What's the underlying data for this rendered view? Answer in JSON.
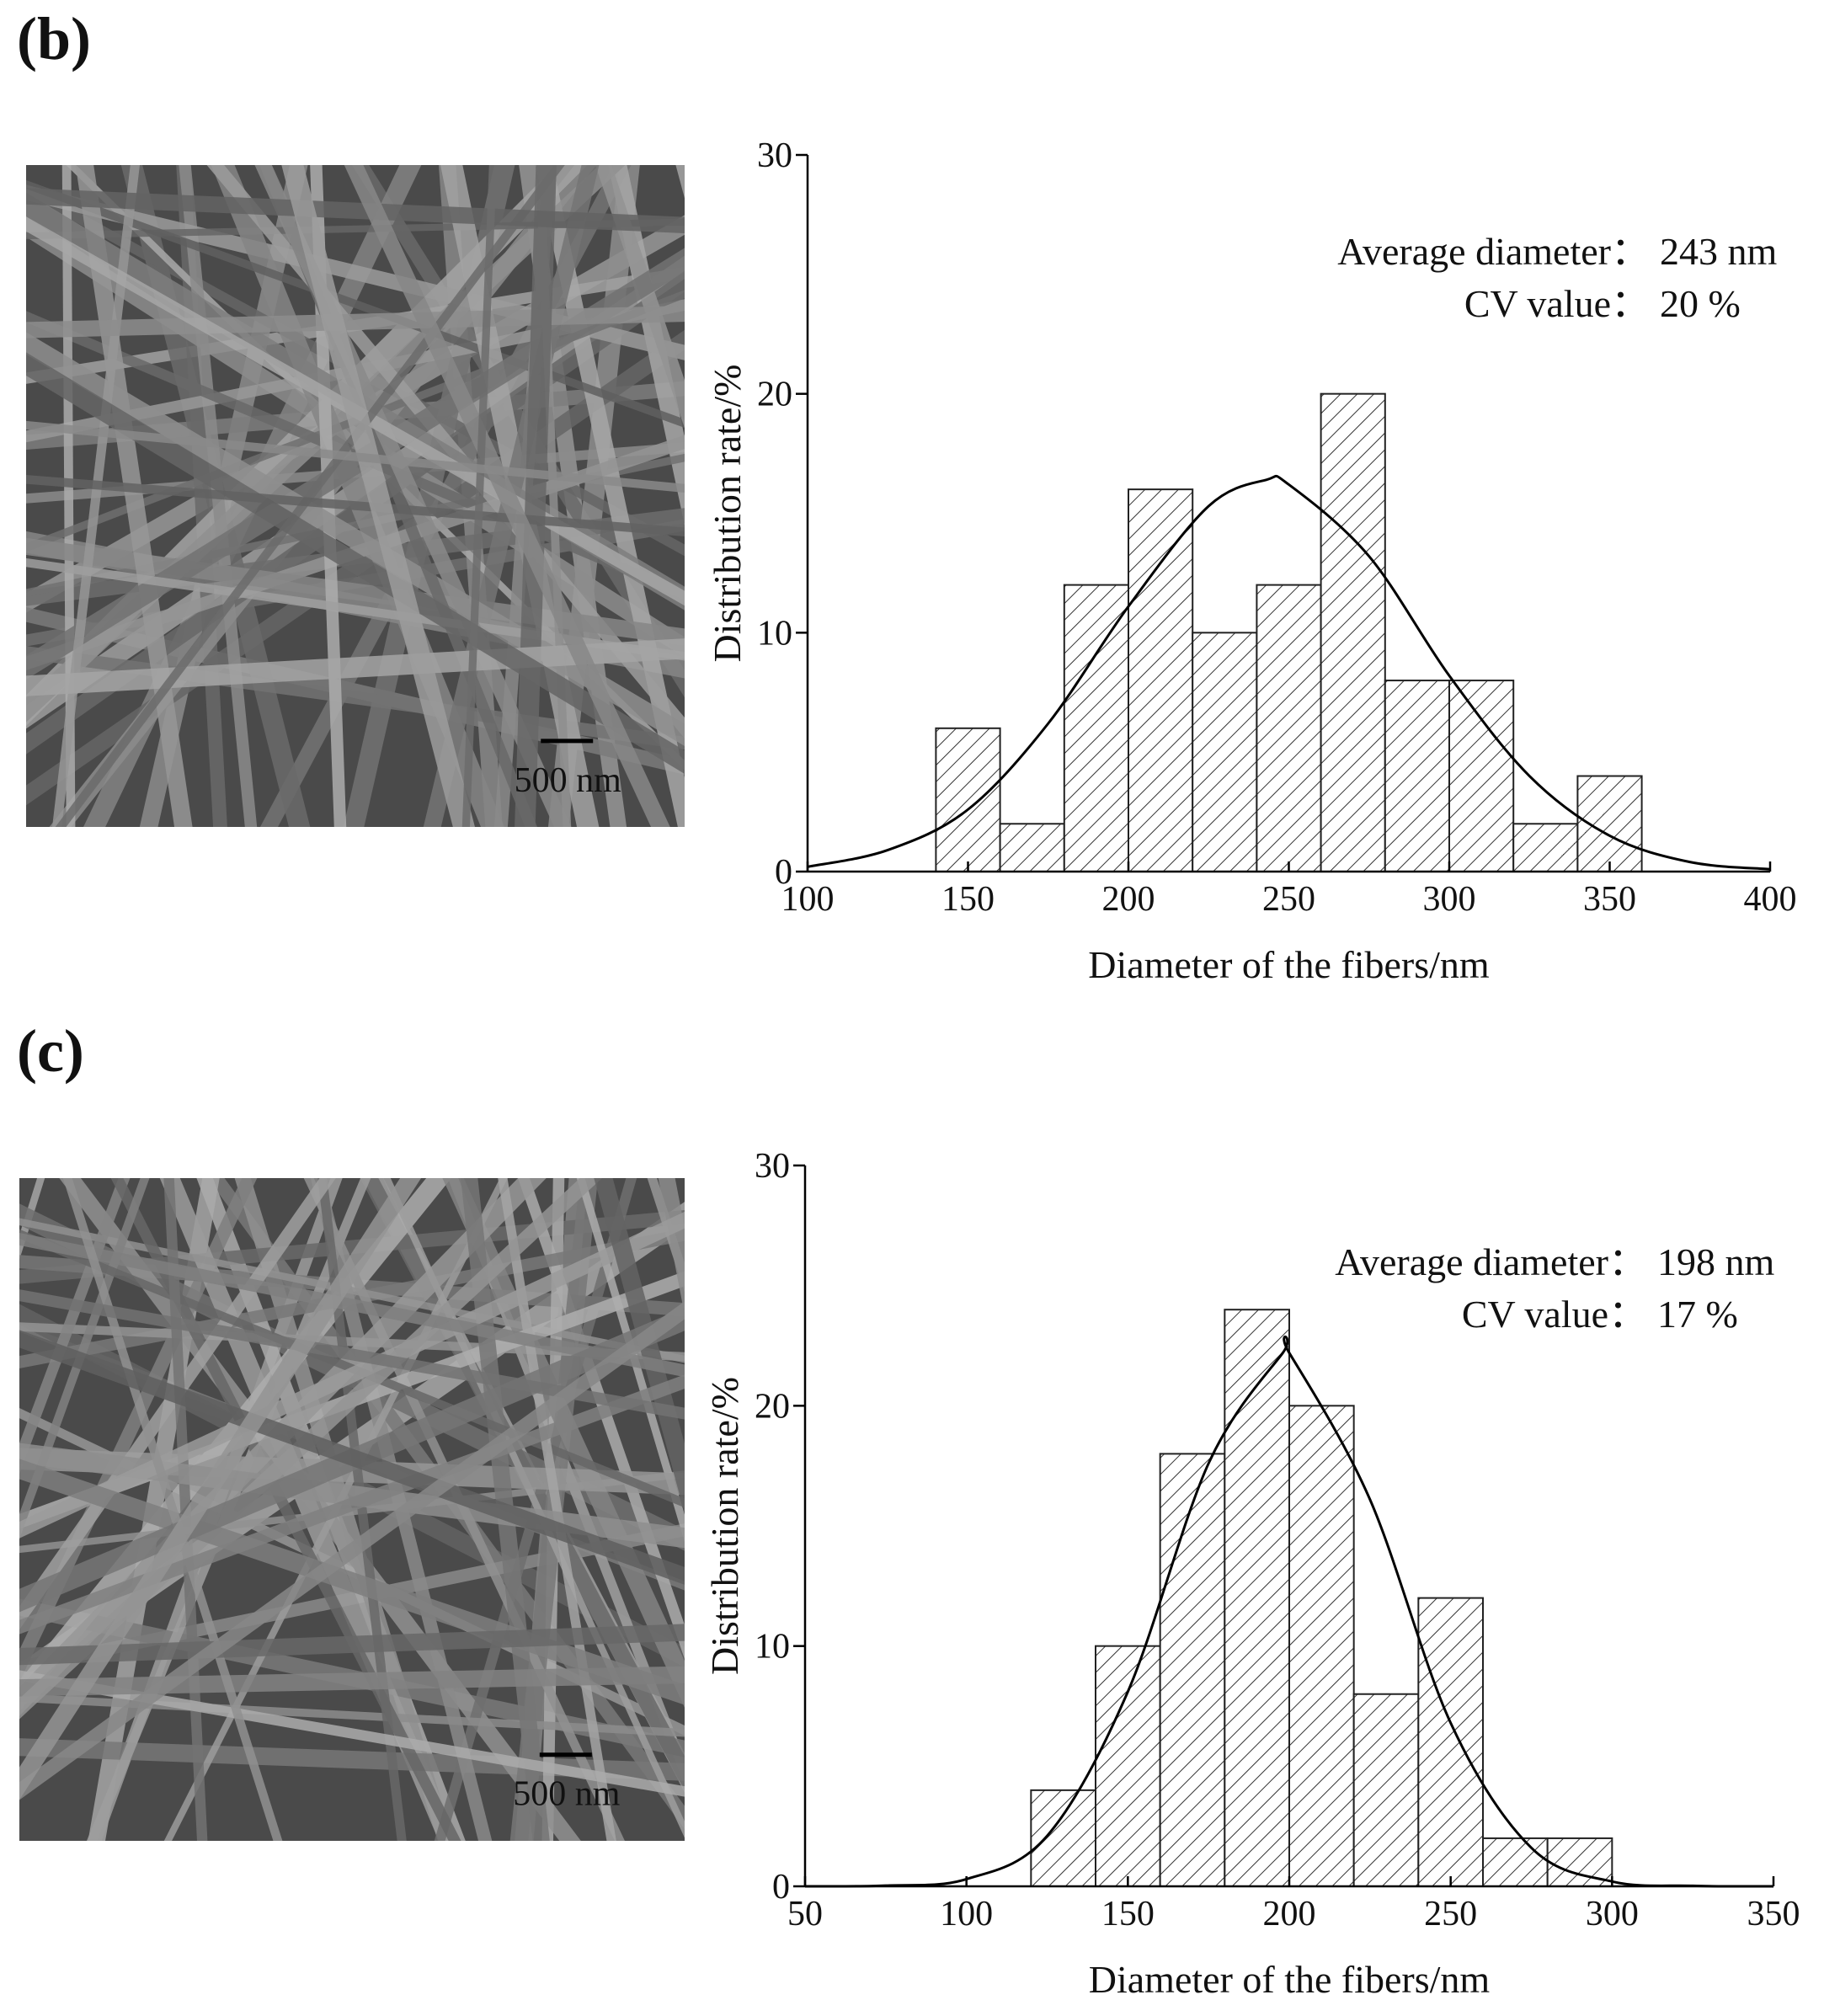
{
  "chart_data": [
    {
      "type": "histogram",
      "panel_label": "(b)",
      "xlabel": "Diameter of the fibers/nm",
      "ylabel": "Distribution rate/%",
      "bins": [
        140,
        160,
        180,
        200,
        220,
        240,
        260,
        280,
        300,
        320,
        340,
        360
      ],
      "values": [
        6,
        2,
        12,
        16,
        10,
        12,
        20,
        8,
        8,
        2,
        4
      ],
      "curve": {
        "x": [
          100,
          125,
          150,
          175,
          200,
          225,
          243,
          250,
          275,
          300,
          325,
          350,
          375,
          400
        ],
        "values": [
          0.2,
          0.9,
          2.6,
          6.2,
          11.1,
          15.3,
          16.4,
          16.2,
          13.2,
          8.2,
          4.0,
          1.5,
          0.4,
          0.1
        ],
        "color": "#000000"
      },
      "annotations": [
        {
          "label": "Average diameter：",
          "value": "243 nm"
        },
        {
          "label": "CV value：",
          "value": "20 %"
        }
      ],
      "scale_bar": "500 nm",
      "xlim": [
        100,
        400
      ],
      "xticks": [
        100,
        150,
        200,
        250,
        300,
        350,
        400
      ],
      "ylim": [
        0,
        30
      ],
      "yticks": [
        0,
        10,
        20,
        30
      ]
    },
    {
      "type": "histogram",
      "panel_label": "(c)",
      "xlabel": "Diameter of the fibers/nm",
      "ylabel": "Distribution rate/%",
      "bins": [
        120,
        140,
        160,
        180,
        200,
        220,
        240,
        260,
        280,
        300
      ],
      "values": [
        4,
        10,
        18,
        24,
        20,
        8,
        12,
        2,
        2
      ],
      "curve": {
        "x": [
          50,
          75,
          100,
          125,
          150,
          175,
          198,
          200,
          225,
          250,
          275,
          300,
          325,
          350
        ],
        "values": [
          0,
          0.03,
          0.3,
          2.1,
          8.1,
          17.6,
          22.2,
          22.2,
          16.1,
          6.8,
          1.6,
          0.2,
          0.02,
          0
        ],
        "color": "#000000"
      },
      "annotations": [
        {
          "label": "Average diameter：",
          "value": "198 nm"
        },
        {
          "label": "CV value：",
          "value": "17 %"
        }
      ],
      "scale_bar": "500 nm",
      "xlim": [
        50,
        350
      ],
      "xticks": [
        50,
        100,
        150,
        200,
        250,
        300,
        350
      ],
      "ylim": [
        0,
        30
      ],
      "yticks": [
        0,
        10,
        20,
        30
      ]
    }
  ]
}
